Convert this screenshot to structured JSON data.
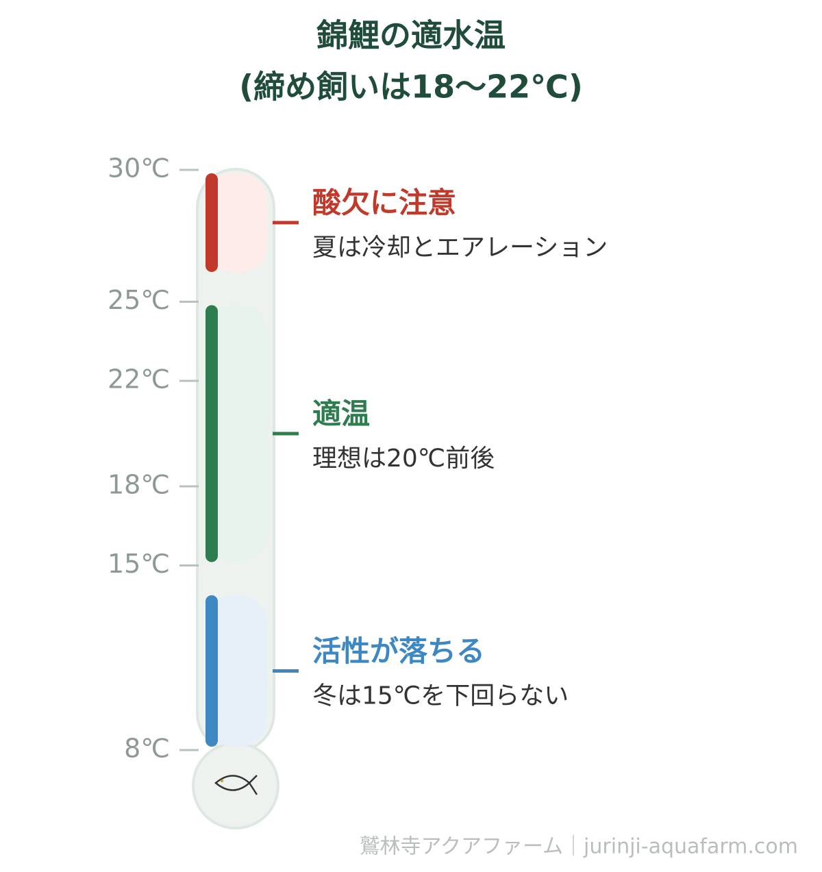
{
  "title": [
    "錦鯉の適水温",
    "(締め飼いは18〜22℃)"
  ],
  "scale": {
    "ylim": [
      8,
      30
    ],
    "ticks": [
      {
        "value": 30,
        "label": "30℃"
      },
      {
        "value": 25,
        "label": "25℃"
      },
      {
        "value": 22,
        "label": "22℃"
      },
      {
        "value": 18,
        "label": "18℃"
      },
      {
        "value": 15,
        "label": "15℃"
      },
      {
        "value": 8,
        "label": "8℃"
      }
    ]
  },
  "zones": [
    {
      "range": [
        26,
        30
      ],
      "color": "#c0392b",
      "fill": "#fdecea",
      "label": "酸欠に注意",
      "note": "夏は冷却とエアレーション"
    },
    {
      "range": [
        15,
        25
      ],
      "color": "#2e7d4f",
      "fill": "#e9f3ed",
      "label": "適温",
      "note": "理想は20℃前後"
    },
    {
      "range": [
        8,
        14
      ],
      "color": "#3d88c3",
      "fill": "#e7eff8",
      "label": "活性が落ちる",
      "note": "冬は15℃を下回らない"
    }
  ],
  "footer": "鷲林寺アクアファーム｜jurinji-aquafarm.com"
}
